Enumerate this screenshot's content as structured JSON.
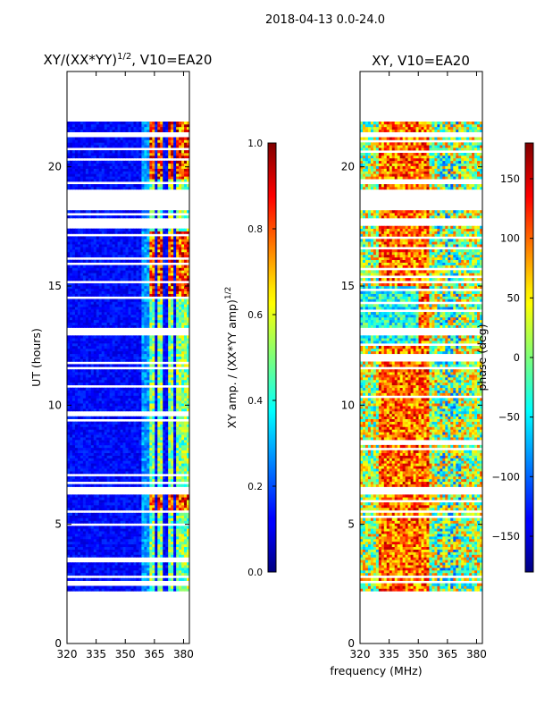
{
  "chart_data": [
    {
      "type": "heatmap",
      "title_main": "XY/(XX*YY)",
      "title_exp": "1/2",
      "title_tail": ", V10=EA20",
      "xlabel": "",
      "ylabel": "UT (hours)",
      "xlim": [
        320,
        383
      ],
      "ylim": [
        0,
        24
      ],
      "xticks": [
        "320",
        "335",
        "350",
        "365",
        "380"
      ],
      "yticks": [
        "0",
        "5",
        "10",
        "15",
        "20"
      ],
      "colorbar": {
        "range": [
          0.0,
          1.0
        ],
        "ticks": [
          "0.0",
          "0.2",
          "0.4",
          "0.6",
          "0.8",
          "1.0"
        ],
        "label_main": "XY amp. / (XX*YY amp)",
        "label_exp": "1/2",
        "colormap": "jet"
      }
    },
    {
      "type": "heatmap",
      "title": "XY, V10=EA20",
      "xlabel": "frequency (MHz)",
      "ylabel": "",
      "xlim": [
        320,
        383
      ],
      "ylim": [
        0,
        24
      ],
      "xticks": [
        "320",
        "335",
        "350",
        "365",
        "380"
      ],
      "yticks": [
        "0",
        "5",
        "10",
        "15",
        "20"
      ],
      "colorbar": {
        "range": [
          -180,
          180
        ],
        "ticks": [
          "−150",
          "−100",
          "−50",
          "0",
          "50",
          "100",
          "150"
        ],
        "label": "phase (deg)",
        "colormap": "jet"
      }
    }
  ],
  "header": {
    "suptitle": "2018-04-13 0.0-24.0"
  }
}
